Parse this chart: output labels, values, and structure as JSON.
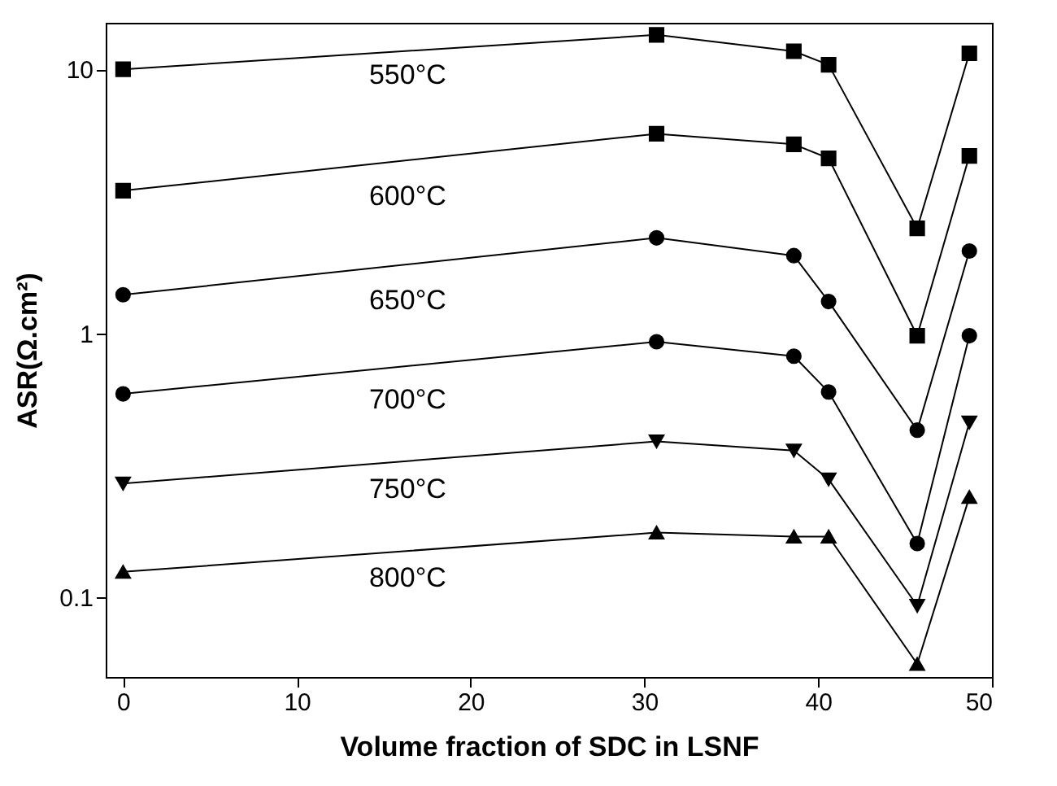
{
  "chart_data": {
    "type": "line",
    "xlabel": "Volume fraction of SDC in LSNF",
    "ylabel": "ASR(Ω.cm²)",
    "x": [
      0,
      30.7,
      38.6,
      40.6,
      45.7,
      48.7
    ],
    "series": [
      {
        "name": "550°C",
        "color": "#000000",
        "marker": "square",
        "values": [
          10,
          13.5,
          11.7,
          10.4,
          2.5,
          11.5
        ]
      },
      {
        "name": "600°C",
        "color": "#000000",
        "marker": "square",
        "values": [
          3.47,
          5.7,
          5.2,
          4.6,
          0.98,
          4.7
        ]
      },
      {
        "name": "650°C",
        "color": "#000000",
        "marker": "circle",
        "values": [
          1.4,
          2.3,
          1.97,
          1.32,
          0.43,
          2.05
        ]
      },
      {
        "name": "700°C",
        "color": "#000000",
        "marker": "circle",
        "values": [
          0.59,
          0.93,
          0.82,
          0.6,
          0.16,
          0.98
        ]
      },
      {
        "name": "750°C",
        "color": "#000000",
        "marker": "triangle-down",
        "values": [
          0.27,
          0.39,
          0.36,
          0.28,
          0.093,
          0.46
        ]
      },
      {
        "name": "800°C",
        "color": "#000000",
        "marker": "triangle",
        "values": [
          0.125,
          0.176,
          0.17,
          0.17,
          0.056,
          0.24
        ]
      }
    ],
    "xlim": [
      -1,
      50
    ],
    "xticks": [
      0,
      10,
      20,
      30,
      40,
      50
    ],
    "ylim": [
      0.05,
      15
    ],
    "yticks": [
      0.1,
      1,
      10
    ],
    "log": "y",
    "grid": false,
    "legend": false,
    "line_style": "solid"
  }
}
